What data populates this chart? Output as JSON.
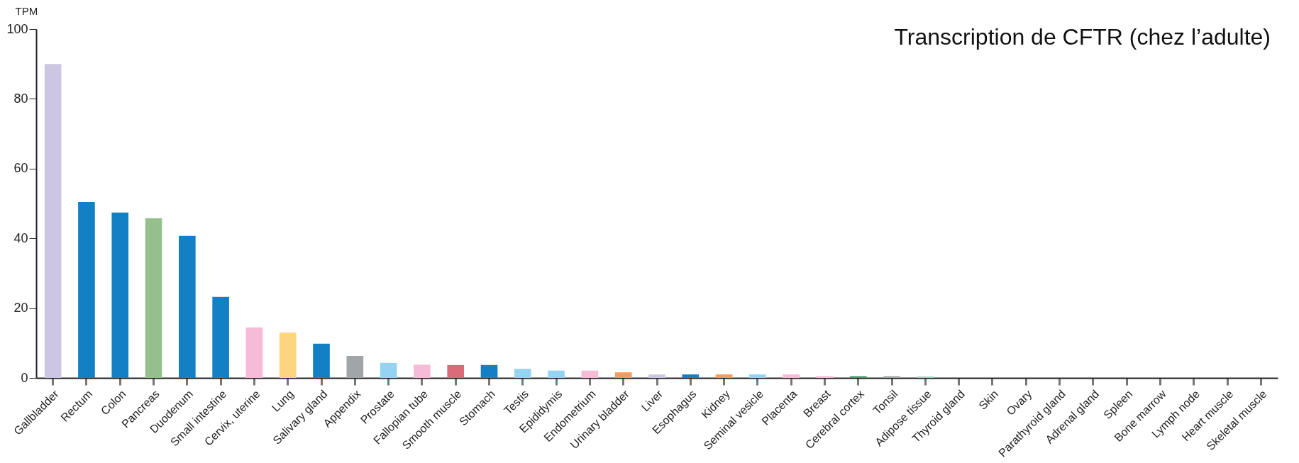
{
  "chart_data": {
    "type": "bar",
    "title": "Transcription de CFTR (chez l’adulte)",
    "ylabel": "TPM",
    "categories": [
      "Gallbladder",
      "Rectum",
      "Colon",
      "Pancreas",
      "Duodenum",
      "Small intestine",
      "Cervix, uterine",
      "Lung",
      "Salivary gland",
      "Appendix",
      "Prostate",
      "Fallopian tube",
      "Smooth muscle",
      "Stomach",
      "Testis",
      "Epididymis",
      "Endometrium",
      "Urinary bladder",
      "Liver",
      "Esophagus",
      "Kidney",
      "Seminal vesicle",
      "Placenta",
      "Breast",
      "Cerebral cortex",
      "Tonsil",
      "Adipose tissue",
      "Thyroid gland",
      "Skin",
      "Ovary",
      "Parathyroid gland",
      "Adrenal gland",
      "Spleen",
      "Bone marrow",
      "Lymph node",
      "Heart muscle",
      "Skeletal muscle"
    ],
    "values": [
      90,
      50.4,
      47.4,
      45.8,
      40.7,
      23.2,
      14.5,
      13,
      9.8,
      6.3,
      4.3,
      3.8,
      3.7,
      3.7,
      2.6,
      2.1,
      2.1,
      1.6,
      1,
      1,
      1,
      1,
      1,
      0.5,
      0.5,
      0.5,
      0.4,
      0,
      0,
      0,
      0,
      0,
      0,
      0,
      0,
      0,
      0
    ],
    "colors": [
      "#cdc6e3",
      "#137fc4",
      "#137fc4",
      "#95c08e",
      "#137fc4",
      "#137fc4",
      "#f6bbd6",
      "#fdd47f",
      "#137fc4",
      "#a0a6a8",
      "#95d3f3",
      "#f6bbd6",
      "#dc6b7a",
      "#137fc4",
      "#95d3f3",
      "#95d3f3",
      "#f6bbd6",
      "#f59b5d",
      "#cdc6e3",
      "#137fc4",
      "#f59b5d",
      "#95d3f3",
      "#f6bbd6",
      "#f6bbd6",
      "#3f9a6a",
      "#a0a6a8",
      "#8fd6c0",
      "#a0a6a8",
      "#a0a6a8",
      "#a0a6a8",
      "#a0a6a8",
      "#a0a6a8",
      "#a0a6a8",
      "#a0a6a8",
      "#a0a6a8",
      "#a0a6a8",
      "#a0a6a8"
    ],
    "ylim": [
      0,
      100
    ],
    "yticks": [
      0,
      20,
      40,
      60,
      80,
      100
    ],
    "grid": false
  }
}
